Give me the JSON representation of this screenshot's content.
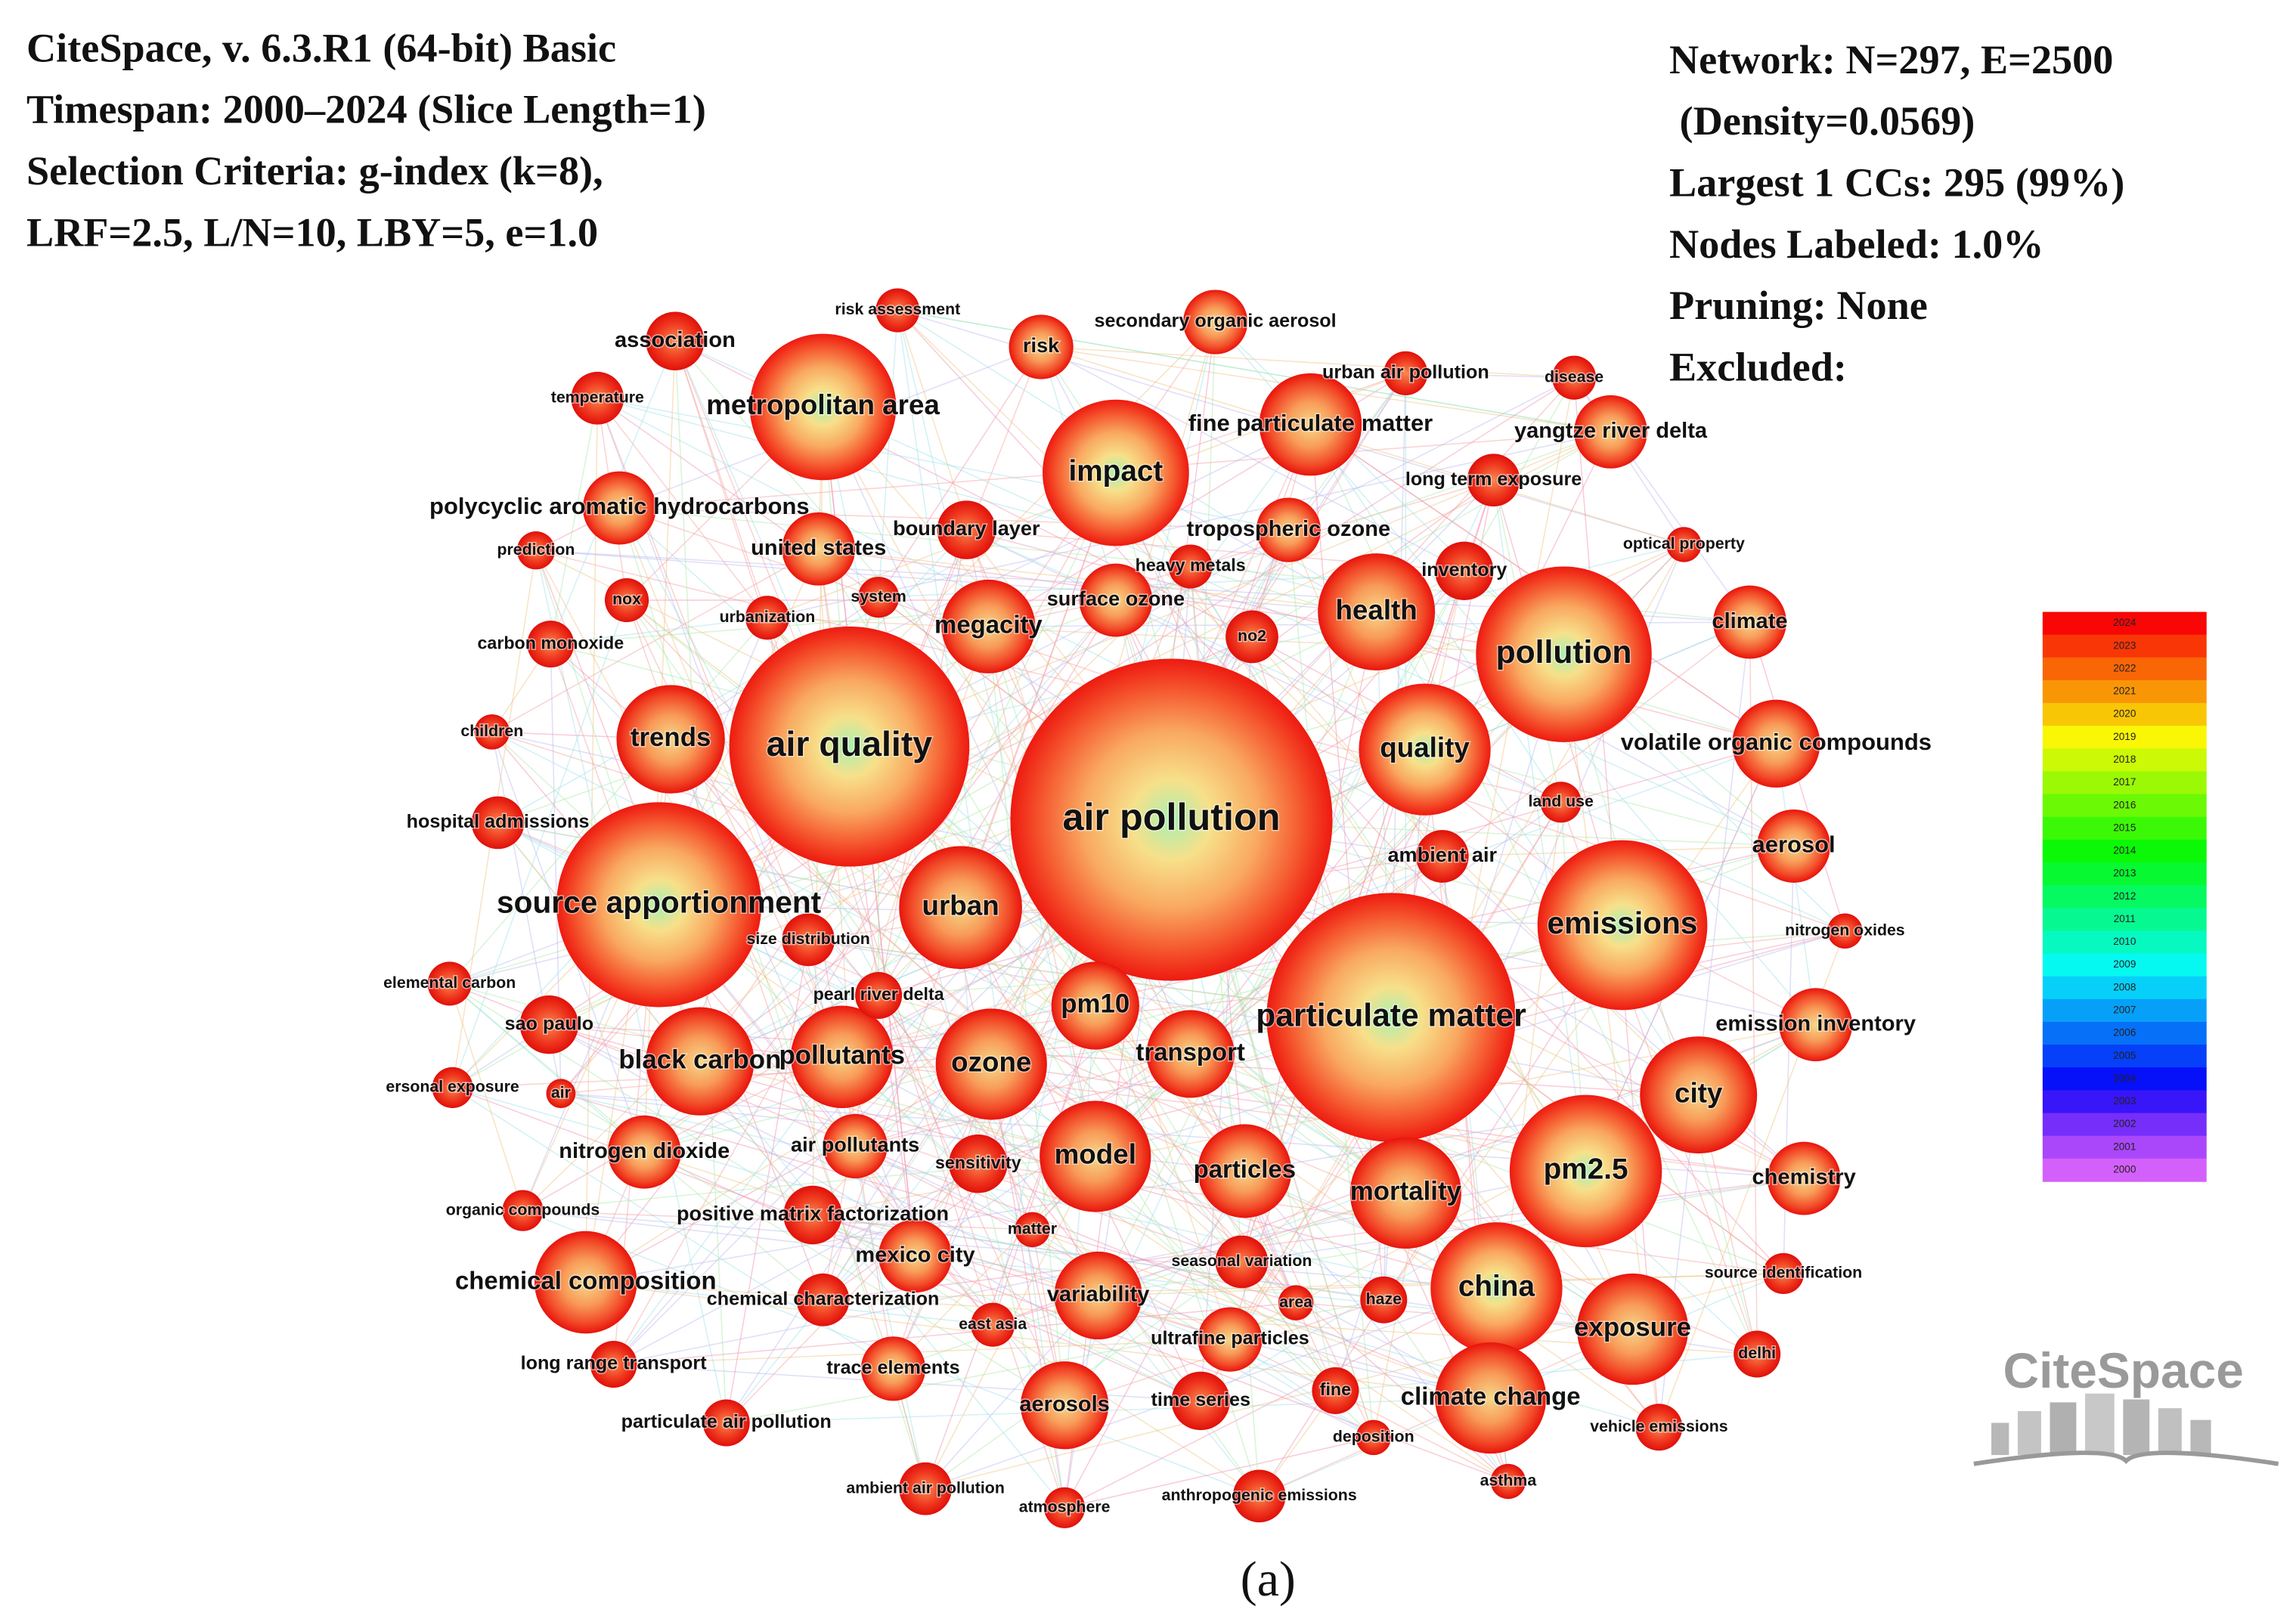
{
  "header": {
    "lines": [
      "CiteSpace, v. 6.3.R1 (64-bit) Basic",
      "Timespan: 2000–2024 (Slice Length=1)",
      "Selection Criteria: g-index (k=8),",
      "LRF=2.5, L/N=10, LBY=5, e=1.0"
    ]
  },
  "network_info": {
    "lines": [
      "Network: N=297, E=2500",
      "(Density=0.0569)",
      "Largest 1 CCs: 295 (99%)",
      "Nodes Labeled: 1.0%",
      "Pruning: None",
      "Excluded:"
    ]
  },
  "nodes": [
    {
      "label": "air pollution"
    },
    {
      "label": "air quality"
    },
    {
      "label": "source apportionment"
    },
    {
      "label": "particulate matter"
    },
    {
      "label": "metropolitan area"
    },
    {
      "label": "impact"
    },
    {
      "label": "pollution"
    },
    {
      "label": "emissions"
    },
    {
      "label": "pm2.5"
    },
    {
      "label": "china"
    },
    {
      "label": "urban"
    },
    {
      "label": "quality"
    },
    {
      "label": "health"
    },
    {
      "label": "trends"
    },
    {
      "label": "black carbon"
    },
    {
      "label": "pollutants"
    },
    {
      "label": "ozone"
    },
    {
      "label": "model"
    },
    {
      "label": "pm10"
    },
    {
      "label": "transport"
    },
    {
      "label": "particles"
    },
    {
      "label": "mortality"
    },
    {
      "label": "city"
    },
    {
      "label": "exposure"
    },
    {
      "label": "climate change"
    },
    {
      "label": "megacity"
    },
    {
      "label": "chemical composition"
    },
    {
      "label": "fine particulate matter"
    },
    {
      "label": "yangtze river delta"
    },
    {
      "label": "volatile organic compounds"
    },
    {
      "label": "aerosol"
    },
    {
      "label": "chemistry"
    },
    {
      "label": "emission inventory"
    },
    {
      "label": "climate"
    },
    {
      "label": "association"
    },
    {
      "label": "risk"
    },
    {
      "label": "polycyclic aromatic hydrocarbons"
    },
    {
      "label": "united states"
    },
    {
      "label": "boundary layer"
    },
    {
      "label": "tropospheric ozone"
    },
    {
      "label": "surface ozone"
    },
    {
      "label": "variability"
    },
    {
      "label": "mexico city"
    },
    {
      "label": "nitrogen dioxide"
    },
    {
      "label": "air pollutants"
    },
    {
      "label": "aerosols"
    },
    {
      "label": "ultrafine particles"
    },
    {
      "label": "trace elements"
    },
    {
      "label": "positive matrix factorization"
    },
    {
      "label": "chemical characterization"
    },
    {
      "label": "inventory"
    },
    {
      "label": "long term exposure"
    },
    {
      "label": "secondary organic aerosol"
    },
    {
      "label": "urban air pollution"
    },
    {
      "label": "risk assessment"
    },
    {
      "label": "disease"
    },
    {
      "label": "temperature"
    },
    {
      "label": "prediction"
    },
    {
      "label": "nox"
    },
    {
      "label": "urbanization"
    },
    {
      "label": "system"
    },
    {
      "label": "heavy metals"
    },
    {
      "label": "no2"
    },
    {
      "label": "carbon monoxide"
    },
    {
      "label": "children"
    },
    {
      "label": "hospital admissions"
    },
    {
      "label": "optical property"
    },
    {
      "label": "land use"
    },
    {
      "label": "ambient air"
    },
    {
      "label": "size distribution"
    },
    {
      "label": "pearl river delta"
    },
    {
      "label": "nitrogen oxides"
    },
    {
      "label": "elemental carbon"
    },
    {
      "label": "sao paulo"
    },
    {
      "label": "ersonal exposure"
    },
    {
      "label": "air"
    },
    {
      "label": "sensitivity"
    },
    {
      "label": "organic compounds"
    },
    {
      "label": "matter"
    },
    {
      "label": "seasonal variation"
    },
    {
      "label": "area"
    },
    {
      "label": "haze"
    },
    {
      "label": "east asia"
    },
    {
      "label": "fine"
    },
    {
      "label": "time series"
    },
    {
      "label": "deposition"
    },
    {
      "label": "long range transport"
    },
    {
      "label": "particulate air pollution"
    },
    {
      "label": "source identification"
    },
    {
      "label": "delhi"
    },
    {
      "label": "vehicle emissions"
    },
    {
      "label": "asthma"
    },
    {
      "label": "ambient air pollution"
    },
    {
      "label": "atmosphere"
    },
    {
      "label": "anthropogenic emissions"
    }
  ],
  "legend": {
    "years": [
      "2024",
      "2023",
      "2022",
      "2021",
      "2020",
      "2019",
      "2018",
      "2017",
      "2016",
      "2015",
      "2014",
      "2013",
      "2012",
      "2011",
      "2010",
      "2009",
      "2008",
      "2007",
      "2006",
      "2005",
      "2004",
      "2003",
      "2002",
      "2001",
      "2000"
    ]
  },
  "logo": "CiteSpace",
  "caption": "(a)"
}
